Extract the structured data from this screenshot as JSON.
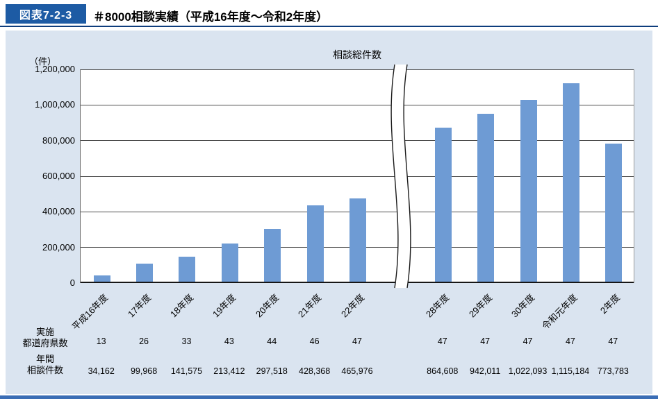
{
  "header": {
    "badge": "図表7-2-3",
    "title": "＃8000相談実績（平成16年度〜令和2年度）"
  },
  "colors": {
    "badge_bg": "#1d5ba4",
    "header_rule": "#0e3d7c",
    "panel_bg": "#dae4f0",
    "bar": "#6e9bd4",
    "bottom_rule": "#3a6db5"
  },
  "chart_data": {
    "type": "bar",
    "title": "相談総件数",
    "unit_label": "（件）",
    "ylim": [
      0,
      1200000
    ],
    "ytick_interval": 200000,
    "ytick_labels": [
      "1,200,000",
      "1,000,000",
      "800,000",
      "600,000",
      "400,000",
      "200,000",
      "0"
    ],
    "grid": true,
    "axis_break_after_index": 6,
    "categories": [
      "平成16年度",
      "17年度",
      "18年度",
      "19年度",
      "20年度",
      "21年度",
      "22年度",
      "28年度",
      "29年度",
      "30年度",
      "令和元年度",
      "2年度"
    ],
    "values": [
      34162,
      99968,
      141575,
      213412,
      297518,
      428368,
      465976,
      864608,
      942011,
      1022093,
      1115184,
      773783
    ],
    "bar_color": "#6e9bd4",
    "table": {
      "rows": [
        {
          "label_lines": [
            "実施",
            "都道府県数"
          ],
          "values": [
            "13",
            "26",
            "33",
            "43",
            "44",
            "46",
            "47",
            "47",
            "47",
            "47",
            "47",
            "47"
          ]
        },
        {
          "label_lines": [
            "年間",
            "相談件数"
          ],
          "values": [
            "34,162",
            "99,968",
            "141,575",
            "213,412",
            "297,518",
            "428,368",
            "465,976",
            "864,608",
            "942,011",
            "1,022,093",
            "1,115,184",
            "773,783"
          ]
        }
      ]
    }
  }
}
